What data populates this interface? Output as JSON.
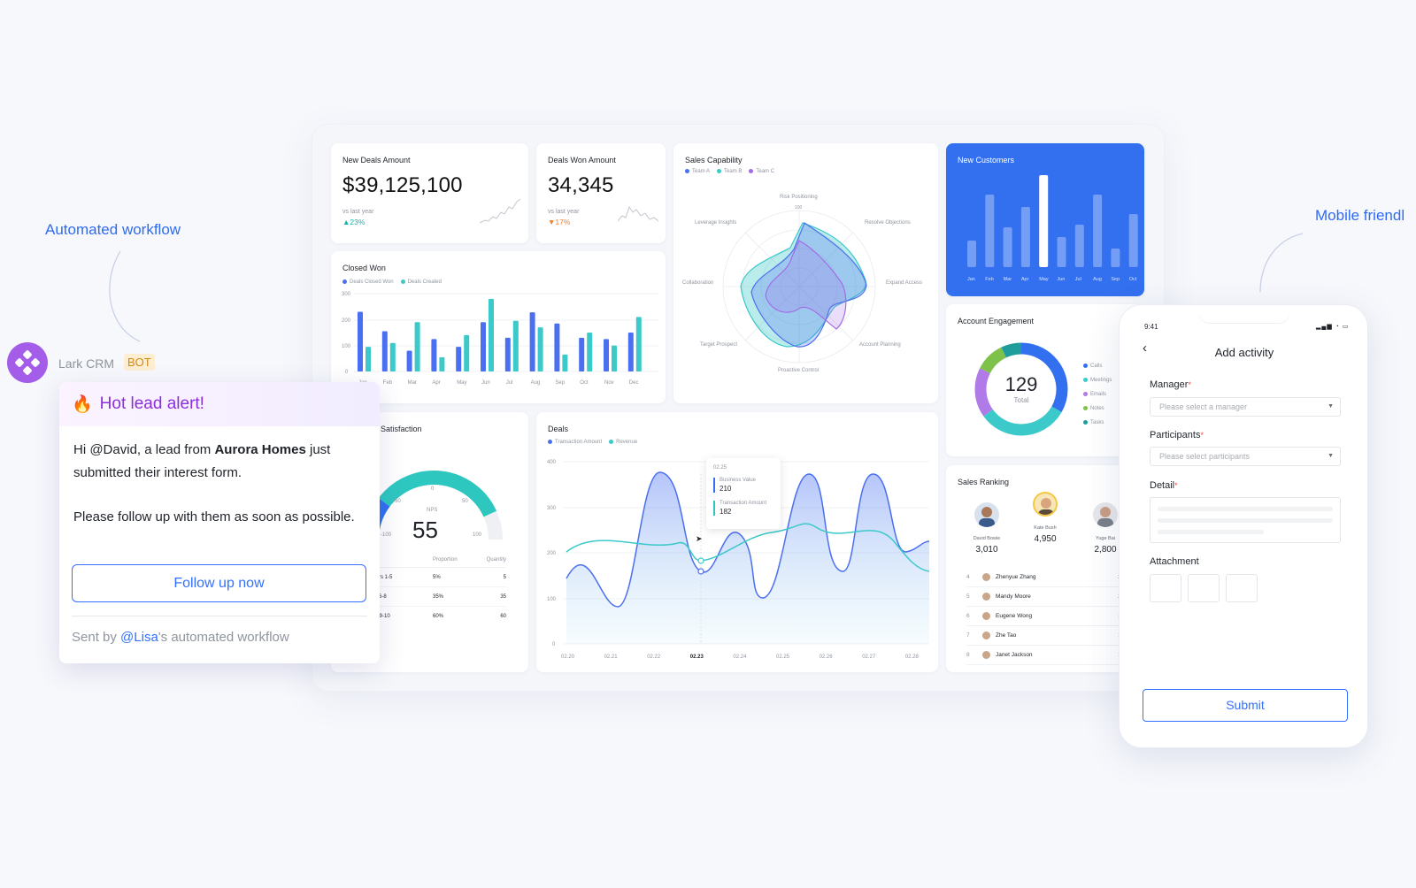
{
  "callouts": {
    "left": "Automated workflow",
    "right": "Mobile friendl"
  },
  "bot": {
    "name": "Lark CRM",
    "badge": "BOT"
  },
  "alert": {
    "title": "Hot lead alert!",
    "line1_pre": "Hi @David, a lead from ",
    "line1_bold": "Aurora Homes",
    "line1_post": " just submitted their interest form.",
    "line2": "Please follow up with them as soon as possible.",
    "button": "Follow up now",
    "footer_pre": "Sent by ",
    "footer_mention": "@Lisa",
    "footer_post": "'s automated workflow"
  },
  "kpis": [
    {
      "title": "New Deals Amount",
      "value": "$39,125,100",
      "sub": "vs last year",
      "pct": "23%",
      "dir": "up",
      "color": "#15b3a8"
    },
    {
      "title": "Deals Won Amount",
      "value": "34,345",
      "sub": "vs last year",
      "pct": "17%",
      "dir": "down",
      "color": "#f07f2a"
    }
  ],
  "closed_won": {
    "title": "Closed Won",
    "legend": [
      "Deals Closed Won",
      "Deals Created"
    ],
    "yticks": [
      "300",
      "200",
      "100",
      "0"
    ],
    "months": [
      "Jan",
      "Feb",
      "Mar",
      "Apr",
      "May",
      "Jun",
      "Jul",
      "Aug",
      "Sep",
      "Oct",
      "Nov",
      "Dec"
    ]
  },
  "sales_capability": {
    "title": "Sales Capability",
    "legend": [
      "Team A",
      "Team B",
      "Team C"
    ],
    "axes": [
      "Risk Positioning",
      "Resolve Objections",
      "Expand Access",
      "Account Planning",
      "Proactive Control",
      "Target Prospect",
      "Collaboration",
      "Leverage Insights"
    ],
    "scale": [
      "100",
      "75",
      "50",
      "25",
      "0"
    ]
  },
  "new_customers": {
    "title": "New Customers",
    "months": [
      "Jan",
      "Feb",
      "Mar",
      "Apr",
      "May",
      "Jun",
      "Jul",
      "Aug",
      "Sep",
      "Oct"
    ]
  },
  "account_engagement": {
    "title": "Account Engagement",
    "total": "129",
    "total_label": "Total",
    "legend": [
      "Calls",
      "Meetings",
      "Emails",
      "Notes",
      "Tasks"
    ]
  },
  "satisfaction": {
    "title": "Satisfaction",
    "nps_label": "NPS",
    "nps": "55",
    "gauge_ticks": [
      "-100",
      "-50",
      "0",
      "50",
      "100"
    ],
    "headers": [
      "ns",
      "Proportion",
      "Quantity"
    ],
    "rows": [
      [
        "ctors 1-5",
        "5%",
        "5"
      ],
      [
        "es 6-8",
        "35%",
        "35"
      ],
      [
        "ter 9-10",
        "60%",
        "60"
      ]
    ]
  },
  "deals": {
    "title": "Deals",
    "legend": [
      "Transaction Amount",
      "Revenue"
    ],
    "yticks": [
      "400",
      "300",
      "200",
      "100",
      "0"
    ],
    "dates": [
      "02.20",
      "02.21",
      "02.22",
      "02.23",
      "02.24",
      "02.25",
      "02.26",
      "02.27",
      "02.28"
    ],
    "tooltip": {
      "date": "02.25",
      "bv_label": "Business Value",
      "bv": "210",
      "ta_label": "Transaction Amount",
      "ta": "182"
    }
  },
  "sales_ranking": {
    "title": "Sales Ranking",
    "podium": [
      {
        "name": "David Bowie",
        "value": "3,010"
      },
      {
        "name": "Kate Bush",
        "value": "4,950"
      },
      {
        "name": "Yuge Bai",
        "value": "2,800"
      }
    ],
    "rows": [
      {
        "rank": "4",
        "name": "Zhenyue Zhang",
        "value": "2,6"
      },
      {
        "rank": "5",
        "name": "Mandy Moore",
        "value": "2,2"
      },
      {
        "rank": "6",
        "name": "Eugene Wong",
        "value": "1,6"
      },
      {
        "rank": "7",
        "name": "Zhe Tao",
        "value": "1,1"
      },
      {
        "rank": "8",
        "name": "Janet Jackson",
        "value": "1,1"
      }
    ]
  },
  "phone": {
    "time": "9:41",
    "title": "Add activity",
    "manager_label": "Manager",
    "manager_placeholder": "Please select a manager",
    "participants_label": "Participants",
    "participants_placeholder": "Please select participants",
    "detail_label": "Detail",
    "attachment_label": "Attachment",
    "submit": "Submit"
  },
  "colors": {
    "accent": "#3370ff",
    "teal": "#3cc9c9",
    "purple": "#9a4be0"
  }
}
